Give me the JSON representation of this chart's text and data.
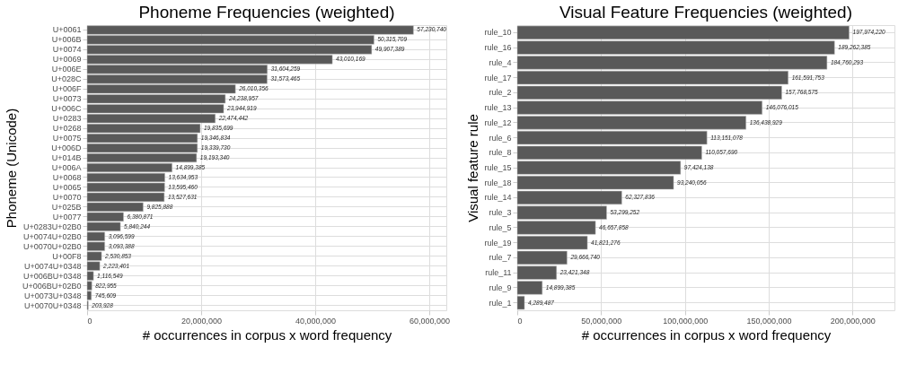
{
  "chart_data": [
    {
      "type": "bar",
      "orientation": "horizontal",
      "title": "Phoneme Frequencies (weighted)",
      "xlabel": "# occurrences in corpus x word frequency",
      "ylabel": "Phoneme (Unicode)",
      "categories": [
        "U+0061",
        "U+006B",
        "U+0074",
        "U+0069",
        "U+006E",
        "U+028C",
        "U+006F",
        "U+0073",
        "U+006C",
        "U+0283",
        "U+0268",
        "U+0075",
        "U+006D",
        "U+014B",
        "U+006A",
        "U+0068",
        "U+0065",
        "U+0070",
        "U+025B",
        "U+0077",
        "U+0283U+02B0",
        "U+0074U+02B0",
        "U+0070U+02B0",
        "U+00F8",
        "U+0074U+0348",
        "U+006BU+0348",
        "U+006BU+02B0",
        "U+0073U+0348",
        "U+0070U+0348"
      ],
      "values": [
        57230740,
        50315709,
        49907389,
        43010169,
        31604259,
        31573465,
        26010356,
        24238957,
        23944919,
        22474442,
        19835699,
        19346834,
        19339730,
        19193340,
        14899385,
        13634953,
        13595460,
        13527631,
        9825888,
        6380871,
        5840244,
        3096599,
        3093388,
        2530853,
        2223401,
        1116549,
        822955,
        745609,
        203928
      ],
      "value_labels": [
        "57,230,740",
        "50,315,709",
        "49,907,389",
        "43,010,169",
        "31,604,259",
        "31,573,465",
        "26,010,356",
        "24,238,957",
        "23,944,919",
        "22,474,442",
        "19,835,699",
        "19,346,834",
        "19,339,730",
        "19,193,340",
        "14,899,385",
        "13,634,953",
        "13,595,460",
        "13,527,631",
        "9,825,888",
        "6,380,871",
        "5,840,244",
        "3,096,599",
        "3,093,388",
        "2,530,853",
        "2,223,401",
        "1,116,549",
        "822,955",
        "745,609",
        "203,928"
      ],
      "color": "#595959",
      "xlim": [
        0,
        63000000
      ],
      "xticks": [
        {
          "value": 0,
          "label": "0"
        },
        {
          "value": 20000000,
          "label": "20,000,000"
        },
        {
          "value": 40000000,
          "label": "40,000,000"
        },
        {
          "value": 60000000,
          "label": "60,000,000"
        }
      ],
      "grid": true
    },
    {
      "type": "bar",
      "orientation": "horizontal",
      "title": "Visual Feature Frequencies (weighted)",
      "xlabel": "# occurrences in corpus x word frequency",
      "ylabel": "Visual feature rule",
      "categories": [
        "rule_10",
        "rule_16",
        "rule_4",
        "rule_17",
        "rule_2",
        "rule_13",
        "rule_12",
        "rule_6",
        "rule_8",
        "rule_15",
        "rule_18",
        "rule_14",
        "rule_3",
        "rule_5",
        "rule_19",
        "rule_7",
        "rule_11",
        "rule_9",
        "rule_1"
      ],
      "values": [
        197974220,
        189262385,
        184760293,
        161591753,
        157768575,
        146076015,
        136438929,
        113151078,
        110057690,
        97424138,
        93240056,
        62327836,
        53299252,
        46657858,
        41821276,
        29666740,
        23421348,
        14899385,
        4289487
      ],
      "value_labels": [
        "197,974,220",
        "189,262,385",
        "184,760,293",
        "161,591,753",
        "157,768,575",
        "146,076,015",
        "136,438,929",
        "113,151,078",
        "110,057,690",
        "97,424,138",
        "93,240,056",
        "62,327,836",
        "53,299,252",
        "46,657,858",
        "41,821,276",
        "29,666,740",
        "23,421,348",
        "14,899,385",
        "4,289,487"
      ],
      "color": "#595959",
      "xlim": [
        0,
        225000000
      ],
      "xticks": [
        {
          "value": 0,
          "label": "0"
        },
        {
          "value": 50000000,
          "label": "50,000,000"
        },
        {
          "value": 100000000,
          "label": "100,000,000"
        },
        {
          "value": 150000000,
          "label": "150,000,000"
        },
        {
          "value": 200000000,
          "label": "200,000,000"
        }
      ],
      "grid": true
    }
  ]
}
